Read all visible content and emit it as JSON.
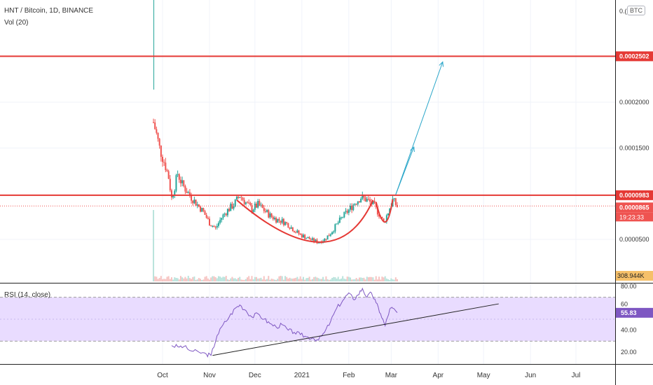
{
  "legend": {
    "symbol_line": "HNT / Bitcoin, 1D, BINANCE",
    "volume_line": "Vol (20)",
    "rsi_line": "RSI (14, close)",
    "currency_badge": "BTC"
  },
  "colors": {
    "up": "#26a69a",
    "down": "#ef5350",
    "annotation_red": "#e53935",
    "arrow": "#2aa6c9",
    "rsi_line": "#7e57c2",
    "rsi_band": "#e9dcff",
    "trendline": "#222222",
    "current_price_line": "#ef5350"
  },
  "chart_data": [
    {
      "type": "candlestick",
      "title": "HNT / Bitcoin, 1D, BINANCE",
      "x_ticks": [
        "Oct",
        "Nov",
        "Dec",
        "2021",
        "Feb",
        "Mar",
        "Apr",
        "May",
        "Jun",
        "Jul"
      ],
      "y_ticks": [
        "0.0002000",
        "0.0001500",
        "0.0000500"
      ],
      "y_range": [
        0.0,
        0.00029
      ],
      "partial_top_tick": "0.(",
      "price_labels": [
        {
          "value": 0.0002502,
          "text": "0.0002502",
          "kind": "horizontal-level"
        },
        {
          "value": 9.83e-05,
          "text": "0.0000983",
          "kind": "horizontal-level"
        },
        {
          "value": 8.65e-05,
          "text": "0.0000865",
          "kind": "last-price"
        },
        {
          "text": "19:23:33",
          "kind": "countdown"
        }
      ],
      "volume_label": "308.944K",
      "price_path": [
        [
          "2020-09-25",
          0.000178
        ],
        [
          "2020-09-27",
          0.000165
        ],
        [
          "2020-09-29",
          0.00015
        ],
        [
          "2020-10-01",
          0.00014
        ],
        [
          "2020-10-03",
          0.00013
        ],
        [
          "2020-10-05",
          0.000118
        ],
        [
          "2020-10-07",
          9.5e-05
        ],
        [
          "2020-10-09",
          0.000108
        ],
        [
          "2020-10-11",
          0.000122
        ],
        [
          "2020-10-14",
          0.00011
        ],
        [
          "2020-10-17",
          0.000103
        ],
        [
          "2020-10-20",
          9.6e-05
        ],
        [
          "2020-10-24",
          8.8e-05
        ],
        [
          "2020-10-28",
          8e-05
        ],
        [
          "2020-11-01",
          6.8e-05
        ],
        [
          "2020-11-05",
          6.2e-05
        ],
        [
          "2020-11-09",
          7.4e-05
        ],
        [
          "2020-11-13",
          8.2e-05
        ],
        [
          "2020-11-17",
          8.8e-05
        ],
        [
          "2020-11-21",
          9.8e-05
        ],
        [
          "2020-11-25",
          9e-05
        ],
        [
          "2020-11-29",
          8.3e-05
        ],
        [
          "2020-12-03",
          8.8e-05
        ],
        [
          "2020-12-07",
          8.2e-05
        ],
        [
          "2020-12-11",
          7.6e-05
        ],
        [
          "2020-12-15",
          7.2e-05
        ],
        [
          "2020-12-19",
          7e-05
        ],
        [
          "2020-12-23",
          6.6e-05
        ],
        [
          "2020-12-27",
          6e-05
        ],
        [
          "2020-12-31",
          5.5e-05
        ],
        [
          "2021-01-04",
          5.2e-05
        ],
        [
          "2021-01-08",
          4.9e-05
        ],
        [
          "2021-01-12",
          4.7e-05
        ],
        [
          "2021-01-16",
          5e-05
        ],
        [
          "2021-01-20",
          5.7e-05
        ],
        [
          "2021-01-24",
          6.6e-05
        ],
        [
          "2021-01-28",
          7.5e-05
        ],
        [
          "2021-02-01",
          8.2e-05
        ],
        [
          "2021-02-05",
          9e-05
        ],
        [
          "2021-02-09",
          9.6e-05
        ],
        [
          "2021-02-13",
          9.3e-05
        ],
        [
          "2021-02-17",
          8.8e-05
        ],
        [
          "2021-02-21",
          7.8e-05
        ],
        [
          "2021-02-24",
          6.8e-05
        ],
        [
          "2021-02-27",
          8e-05
        ],
        [
          "2021-03-02",
          9.3e-05
        ],
        [
          "2021-03-05",
          8.6e-05
        ]
      ],
      "volume_spike_date": "2020-09-25",
      "annotations": {
        "horizontal_levels": [
          0.0002502,
          9.83e-05
        ],
        "cup_arc": [
          [
            "2020-11-19",
            9.3e-05
          ],
          [
            "2021-01-13",
            4.7e-05
          ],
          [
            "2021-02-17",
            9.3e-05
          ]
        ],
        "handle_arc": [
          [
            "2021-02-19",
            9.1e-05
          ],
          [
            "2021-02-25",
            6.9e-05
          ],
          [
            "2021-03-02",
            9.4e-05
          ]
        ],
        "arrows": [
          [
            [
              "2021-03-04",
              9.9e-05
            ],
            [
              "2021-03-16",
              0.000151
            ]
          ],
          [
            [
              "2021-03-04",
              9.9e-05
            ],
            [
              "2021-04-04",
              0.000244
            ]
          ]
        ]
      }
    },
    {
      "type": "line",
      "title": "RSI (14, close)",
      "y_ticks": [
        80,
        40,
        20
      ],
      "y_range": [
        10,
        80
      ],
      "band": [
        30,
        70
      ],
      "last_value_label": "55.83",
      "partial_tick": "60",
      "series": [
        [
          "2020-10-07",
          26
        ],
        [
          "2020-10-11",
          25
        ],
        [
          "2020-10-15",
          25
        ],
        [
          "2020-10-20",
          21
        ],
        [
          "2020-10-25",
          20
        ],
        [
          "2020-10-30",
          18
        ],
        [
          "2020-11-02",
          17
        ],
        [
          "2020-11-06",
          35
        ],
        [
          "2020-11-10",
          45
        ],
        [
          "2020-11-14",
          52
        ],
        [
          "2020-11-18",
          60
        ],
        [
          "2020-11-21",
          63
        ],
        [
          "2020-11-25",
          58
        ],
        [
          "2020-11-29",
          52
        ],
        [
          "2020-12-03",
          55
        ],
        [
          "2020-12-07",
          50
        ],
        [
          "2020-12-11",
          46
        ],
        [
          "2020-12-15",
          43
        ],
        [
          "2020-12-19",
          45
        ],
        [
          "2020-12-23",
          40
        ],
        [
          "2020-12-27",
          38
        ],
        [
          "2020-12-31",
          36
        ],
        [
          "2021-01-04",
          34
        ],
        [
          "2021-01-08",
          33
        ],
        [
          "2021-01-12",
          31
        ],
        [
          "2021-01-16",
          38
        ],
        [
          "2021-01-20",
          48
        ],
        [
          "2021-01-24",
          60
        ],
        [
          "2021-01-28",
          67
        ],
        [
          "2021-02-01",
          74
        ],
        [
          "2021-02-04",
          68
        ],
        [
          "2021-02-07",
          72
        ],
        [
          "2021-02-10",
          78
        ],
        [
          "2021-02-13",
          70
        ],
        [
          "2021-02-16",
          74
        ],
        [
          "2021-02-19",
          65
        ],
        [
          "2021-02-22",
          55
        ],
        [
          "2021-02-25",
          44
        ],
        [
          "2021-02-28",
          59
        ],
        [
          "2021-03-02",
          60
        ],
        [
          "2021-03-05",
          56
        ]
      ],
      "trendline": [
        [
          "2020-11-03",
          17
        ],
        [
          "2021-05-11",
          64
        ]
      ]
    }
  ]
}
